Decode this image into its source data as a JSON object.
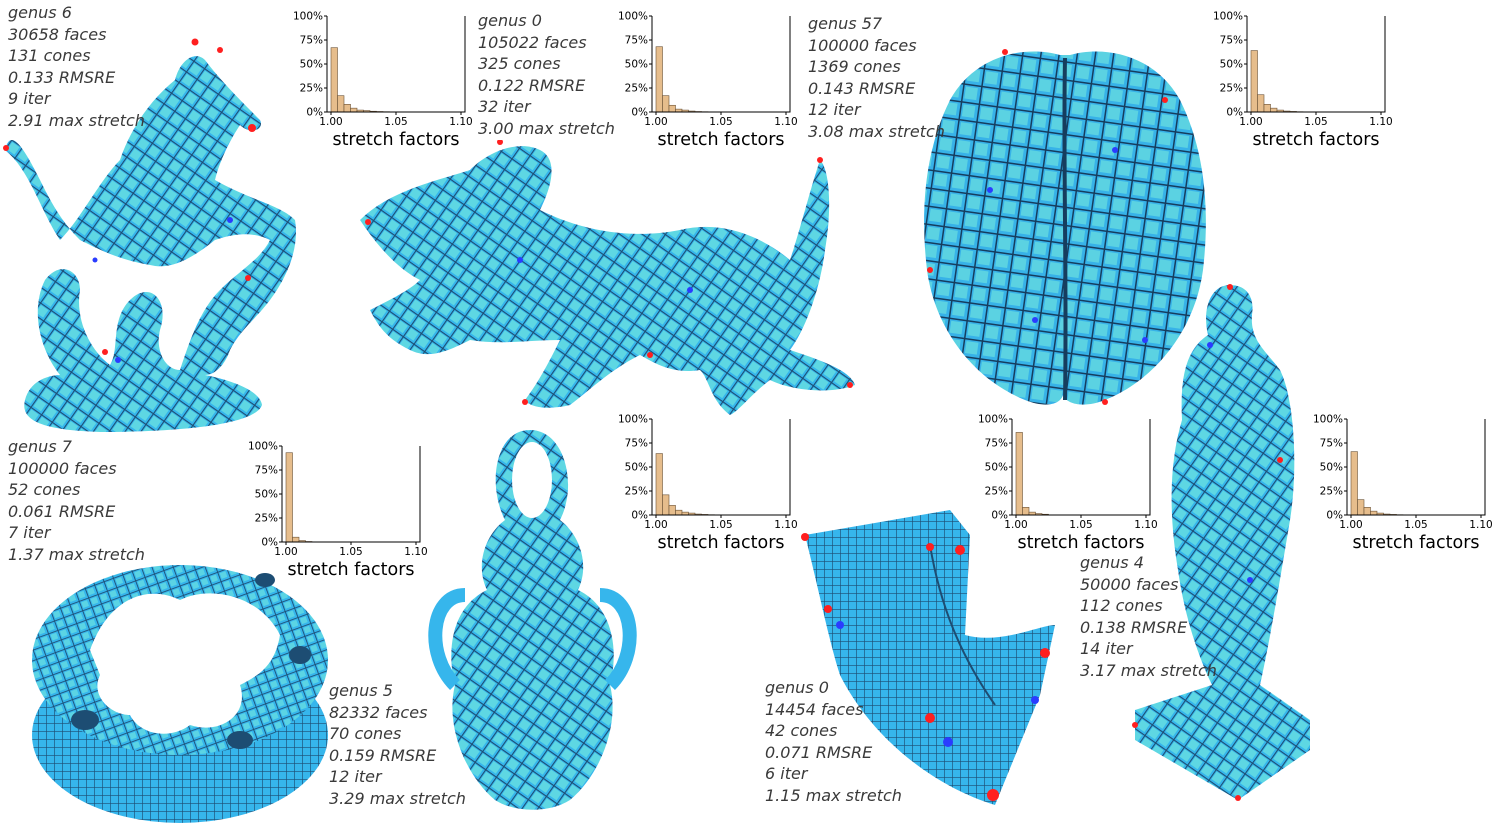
{
  "models": [
    {
      "id": "pegasus",
      "stats": [
        "genus 6",
        "30658 faces",
        "131 cones",
        "0.133 RMSRE",
        "9 iter",
        "2.91 max stretch"
      ]
    },
    {
      "id": "dragon",
      "stats": [
        "genus 0",
        "105022 faces",
        "325 cones",
        "0.122 RMSRE",
        "32 iter",
        "3.00 max stretch"
      ]
    },
    {
      "id": "brain",
      "stats": [
        "genus 57",
        "100000 faces",
        "1369 cones",
        "0.143 RMSRE",
        "12 iter",
        "3.08 max stretch"
      ]
    },
    {
      "id": "gear",
      "stats": [
        "genus 7",
        "100000 faces",
        "52 cones",
        "0.061 RMSRE",
        "7 iter",
        "1.37 max stretch"
      ]
    },
    {
      "id": "vase",
      "stats": [
        "genus 5",
        "82332 faces",
        "70 cones",
        "0.159 RMSRE",
        "12 iter",
        "3.29 max stretch"
      ]
    },
    {
      "id": "fandisk",
      "stats": [
        "genus 0",
        "14454 faces",
        "42 cones",
        "0.071 RMSRE",
        "6 iter",
        "1.15 max stretch"
      ]
    },
    {
      "id": "statue",
      "stats": [
        "genus 4",
        "50000 faces",
        "112 cones",
        "0.138 RMSRE",
        "14 iter",
        "3.17 max stretch"
      ]
    }
  ],
  "chart_data": [
    {
      "type": "bar",
      "id": "pegasus",
      "xlabel": "stretch factors",
      "yticks": [
        "0%",
        "25%",
        "50%",
        "75%",
        "100%"
      ],
      "xticks": [
        "1.00",
        "1.05",
        "1.10"
      ],
      "xlim": [
        1.0,
        1.1
      ],
      "ylim": [
        0,
        100
      ],
      "bin_width": 0.005,
      "values": [
        67,
        17,
        8,
        4,
        2,
        1.5,
        0.8,
        0.5,
        0.3,
        0.2
      ]
    },
    {
      "type": "bar",
      "id": "dragon",
      "xlabel": "stretch factors",
      "yticks": [
        "0%",
        "25%",
        "50%",
        "75%",
        "100%"
      ],
      "xticks": [
        "1.00",
        "1.05",
        "1.10"
      ],
      "xlim": [
        1.0,
        1.1
      ],
      "ylim": [
        0,
        100
      ],
      "bin_width": 0.005,
      "values": [
        68,
        17,
        7,
        3,
        2,
        1,
        0.5,
        0.3
      ]
    },
    {
      "type": "bar",
      "id": "brain",
      "xlabel": "stretch factors",
      "yticks": [
        "0%",
        "25%",
        "50%",
        "75%",
        "100%"
      ],
      "xticks": [
        "1.00",
        "1.05",
        "1.10"
      ],
      "xlim": [
        1.0,
        1.1
      ],
      "ylim": [
        0,
        100
      ],
      "bin_width": 0.005,
      "values": [
        64,
        18,
        8,
        4,
        2,
        1,
        0.6,
        0.3,
        0.2
      ]
    },
    {
      "type": "bar",
      "id": "gear",
      "xlabel": "stretch factors",
      "yticks": [
        "0%",
        "25%",
        "50%",
        "75%",
        "100%"
      ],
      "xticks": [
        "1.00",
        "1.05",
        "1.10"
      ],
      "xlim": [
        1.0,
        1.1
      ],
      "ylim": [
        0,
        100
      ],
      "bin_width": 0.005,
      "values": [
        93,
        5,
        1.5,
        0.5
      ]
    },
    {
      "type": "bar",
      "id": "vase",
      "xlabel": "stretch factors",
      "yticks": [
        "0%",
        "25%",
        "50%",
        "75%",
        "100%"
      ],
      "xticks": [
        "1.00",
        "1.05",
        "1.10"
      ],
      "xlim": [
        1.0,
        1.1
      ],
      "ylim": [
        0,
        100
      ],
      "bin_width": 0.005,
      "values": [
        64,
        21,
        10,
        5,
        3,
        2,
        1,
        0.6,
        0.3,
        0.2
      ]
    },
    {
      "type": "bar",
      "id": "fandisk",
      "xlabel": "stretch factors",
      "yticks": [
        "0%",
        "25%",
        "50%",
        "75%",
        "100%"
      ],
      "xticks": [
        "1.00",
        "1.05",
        "1.10"
      ],
      "xlim": [
        1.0,
        1.1
      ],
      "ylim": [
        0,
        100
      ],
      "bin_width": 0.005,
      "values": [
        86,
        8,
        3,
        1.5,
        0.8
      ]
    },
    {
      "type": "bar",
      "id": "statue",
      "xlabel": "stretch factors",
      "yticks": [
        "0%",
        "25%",
        "50%",
        "75%",
        "100%"
      ],
      "xticks": [
        "1.00",
        "1.05",
        "1.10"
      ],
      "xlim": [
        1.0,
        1.1
      ],
      "ylim": [
        0,
        100
      ],
      "bin_width": 0.005,
      "values": [
        66,
        16,
        8,
        4,
        2,
        1,
        0.6,
        0.3,
        0.2
      ]
    }
  ],
  "colors": {
    "mesh_fill": "#36b6ec",
    "mesh_light": "#7ff2dc",
    "grid_line": "#1d4d73",
    "cone_red": "#ff1f1f",
    "cone_blue": "#2a3cff",
    "seam": "#c8a060",
    "bar_fill": "#e6bd8c",
    "bar_edge": "#6b5236",
    "text": "#3a3a3a"
  }
}
